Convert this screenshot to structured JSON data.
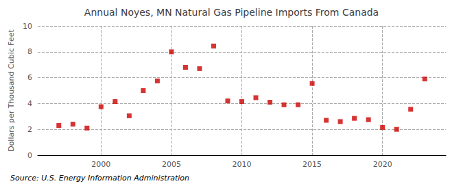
{
  "chart_data": {
    "type": "scatter",
    "title": "Annual Noyes, MN Natural Gas Pipeline Imports From Canada",
    "ylabel": "Dollars per Thousand Cubic Feet",
    "annotations": [
      "Source: U.S. Energy Information Administration"
    ],
    "x": [
      1997,
      1998,
      1999,
      2000,
      2001,
      2002,
      2003,
      2004,
      2005,
      2006,
      2007,
      2008,
      2009,
      2010,
      2011,
      2012,
      2013,
      2014,
      2015,
      2016,
      2017,
      2018,
      2019,
      2020,
      2021,
      2022,
      2023
    ],
    "values": [
      2.3,
      2.4,
      2.1,
      3.75,
      4.15,
      3.05,
      5.0,
      5.75,
      8.0,
      6.8,
      6.7,
      8.45,
      4.2,
      4.15,
      4.45,
      4.1,
      3.9,
      3.9,
      5.55,
      2.7,
      2.6,
      2.85,
      2.75,
      2.15,
      2.0,
      3.55,
      5.9
    ],
    "color": "#cc0000",
    "marker": "square",
    "xlim": [
      1995.5,
      2024.5
    ],
    "xticks": [
      2000,
      2005,
      2010,
      2015,
      2020
    ],
    "ylim": [
      0,
      10
    ],
    "yticks": [
      0,
      2,
      4,
      6,
      8,
      10
    ],
    "grid": true
  }
}
